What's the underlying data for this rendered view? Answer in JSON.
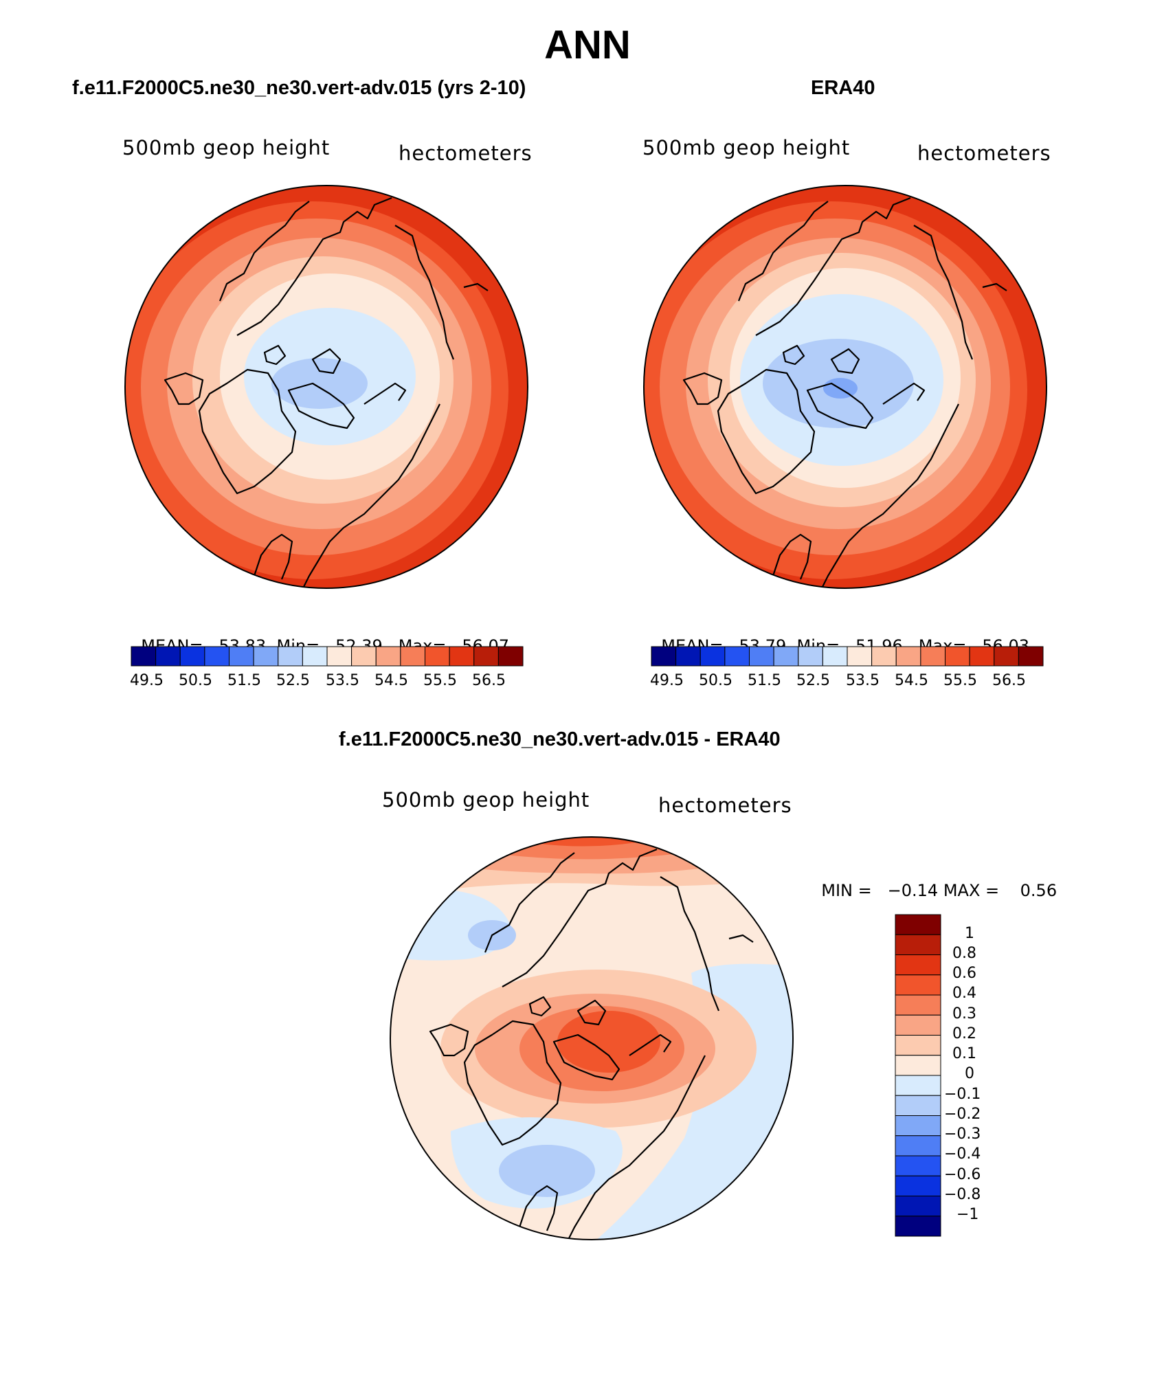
{
  "title": "ANN",
  "panels": [
    {
      "id": "model",
      "title": "f.e11.F2000C5.ne30_ne30.vert-adv.015 (yrs 2-10)",
      "field": "500mb geop height",
      "units": "hectometers",
      "stats": {
        "mean_label": "MEAN=",
        "mean": "53.83",
        "min_label": "Min=",
        "min": "52.39",
        "max_label": "Max=",
        "max": "56.07"
      },
      "colorbar_ticks": [
        "49.5",
        "50.5",
        "51.5",
        "52.5",
        "53.5",
        "54.5",
        "55.5",
        "56.5"
      ]
    },
    {
      "id": "obs",
      "title": "ERA40",
      "field": "500mb geop height",
      "units": "hectometers",
      "stats": {
        "mean_label": "MEAN=",
        "mean": "53.79",
        "min_label": "Min=",
        "min": "51.96",
        "max_label": "Max=",
        "max": "56.03"
      },
      "colorbar_ticks": [
        "49.5",
        "50.5",
        "51.5",
        "52.5",
        "53.5",
        "54.5",
        "55.5",
        "56.5"
      ]
    },
    {
      "id": "diff",
      "title": "f.e11.F2000C5.ne30_ne30.vert-adv.015 - ERA40",
      "field": "500mb geop height",
      "units": "hectometers",
      "stats": {
        "min_label": "MIN =",
        "min": "−0.14",
        "max_label": "MAX =",
        "max": "0.56"
      },
      "colorbar_ticks": [
        "1",
        "0.8",
        "0.6",
        "0.4",
        "0.3",
        "0.2",
        "0.1",
        "0",
        "−0.1",
        "−0.2",
        "−0.3",
        "−0.4",
        "−0.6",
        "−0.8",
        "−1"
      ]
    }
  ],
  "colors": {
    "abs_scale": [
      "#00007f",
      "#0016b4",
      "#0a32e0",
      "#2453f2",
      "#4f7ef5",
      "#80a8f7",
      "#b2cdf9",
      "#d8ebfd",
      "#fdeadc",
      "#fccbb0",
      "#f9a585",
      "#f67e58",
      "#f1552c",
      "#e23513",
      "#b81e09",
      "#7f0000"
    ],
    "diff_scale": [
      "#7f0000",
      "#b81e09",
      "#e23513",
      "#f1552c",
      "#f67e58",
      "#f9a585",
      "#fccbb0",
      "#fdeadc",
      "#d8ebfd",
      "#b2cdf9",
      "#80a8f7",
      "#4f7ef5",
      "#2453f2",
      "#0a32e0",
      "#0016b4",
      "#00007f"
    ]
  }
}
